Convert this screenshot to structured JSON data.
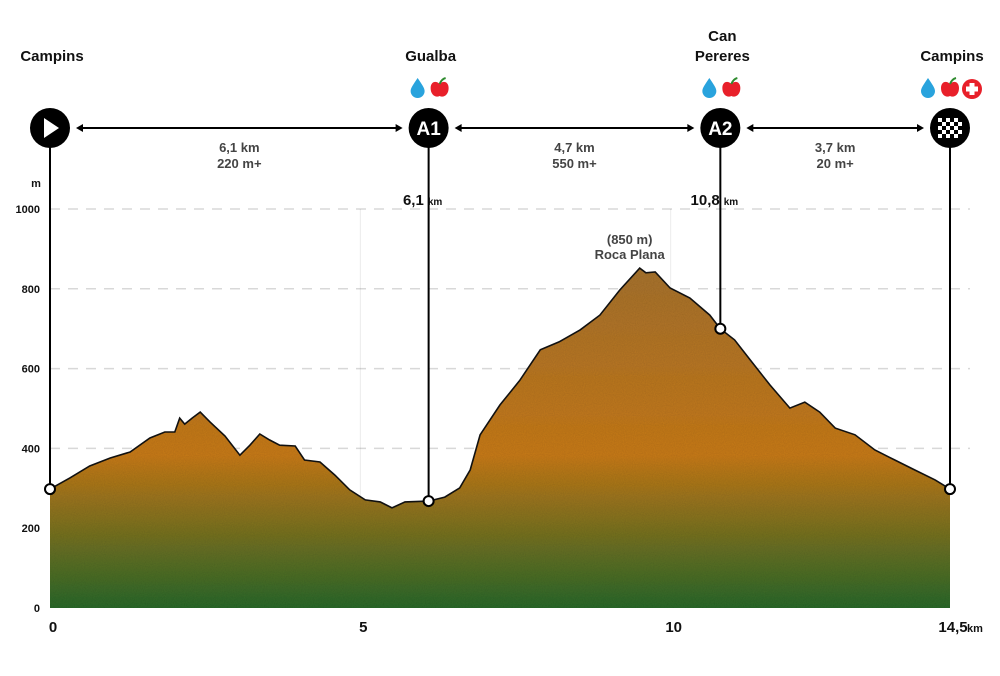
{
  "chart_data": {
    "type": "area",
    "xlabel": "km",
    "ylabel": "m",
    "xlim": [
      0,
      14.5
    ],
    "ylim": [
      0,
      1000
    ],
    "x_ticks": [
      "0",
      "5",
      "10",
      "14,5"
    ],
    "y_ticks": [
      "0",
      "200",
      "400",
      "600",
      "800",
      "1000"
    ],
    "grid": "dashed horizontal",
    "colors": {
      "top": "#a8742f",
      "middle": "#c97b1c",
      "bottom": "#2b6a2b",
      "line": "#111111"
    },
    "profile": [
      [
        0,
        298
      ],
      [
        0.32,
        326
      ],
      [
        0.64,
        356
      ],
      [
        0.97,
        376
      ],
      [
        1.29,
        391
      ],
      [
        1.61,
        426
      ],
      [
        1.85,
        441
      ],
      [
        2.01,
        441
      ],
      [
        2.09,
        476
      ],
      [
        2.17,
        461
      ],
      [
        2.29,
        476
      ],
      [
        2.42,
        491
      ],
      [
        2.58,
        466
      ],
      [
        2.82,
        431
      ],
      [
        3.06,
        383
      ],
      [
        3.22,
        408
      ],
      [
        3.38,
        436
      ],
      [
        3.54,
        421
      ],
      [
        3.7,
        408
      ],
      [
        3.95,
        406
      ],
      [
        4.1,
        371
      ],
      [
        4.35,
        366
      ],
      [
        4.59,
        333
      ],
      [
        4.83,
        296
      ],
      [
        5.08,
        271
      ],
      [
        5.32,
        266
      ],
      [
        5.51,
        251
      ],
      [
        5.72,
        266
      ],
      [
        6.1,
        268
      ],
      [
        6.36,
        278
      ],
      [
        6.6,
        301
      ],
      [
        6.77,
        346
      ],
      [
        6.93,
        434
      ],
      [
        7.25,
        509
      ],
      [
        7.57,
        571
      ],
      [
        7.9,
        647
      ],
      [
        8.2,
        667
      ],
      [
        8.54,
        697
      ],
      [
        8.86,
        734
      ],
      [
        9.18,
        797
      ],
      [
        9.5,
        852
      ],
      [
        9.6,
        840
      ],
      [
        9.75,
        842
      ],
      [
        9.99,
        802
      ],
      [
        10.31,
        777
      ],
      [
        10.63,
        734
      ],
      [
        10.8,
        700
      ],
      [
        11.03,
        672
      ],
      [
        11.28,
        622
      ],
      [
        11.6,
        559
      ],
      [
        11.92,
        501
      ],
      [
        12.16,
        516
      ],
      [
        12.4,
        491
      ],
      [
        12.65,
        451
      ],
      [
        12.97,
        434
      ],
      [
        13.29,
        396
      ],
      [
        13.61,
        371
      ],
      [
        13.93,
        346
      ],
      [
        14.26,
        321
      ],
      [
        14.5,
        298
      ]
    ],
    "peak": {
      "km": 9.5,
      "elevation": 850,
      "label_elev": "(850 m)",
      "label_name": "Roca Plana"
    },
    "checkpoints": [
      {
        "km": 0,
        "elevation": 298,
        "name": [
          "Campins"
        ],
        "badge": "start",
        "icon": "play-icon",
        "services": [],
        "km_label": ""
      },
      {
        "km": 6.1,
        "elevation": 268,
        "name": [
          "Gualba"
        ],
        "badge": "A1",
        "icon": "",
        "services": [
          "water-icon",
          "food-icon"
        ],
        "km_label": "6,1",
        "km_unit": "km"
      },
      {
        "km": 10.8,
        "elevation": 700,
        "name": [
          "Can",
          "Pereres"
        ],
        "badge": "A2",
        "icon": "",
        "services": [
          "water-icon",
          "food-icon"
        ],
        "km_label": "10,8",
        "km_unit": "km"
      },
      {
        "km": 14.5,
        "elevation": 298,
        "name": [
          "Campins"
        ],
        "badge": "finish",
        "icon": "checkered-flag-icon",
        "services": [
          "water-icon",
          "food-icon",
          "medical-icon"
        ],
        "km_label": ""
      }
    ],
    "segments": [
      {
        "distance": "6,1 km",
        "gain": "220 m+"
      },
      {
        "distance": "4,7 km",
        "gain": "550 m+"
      },
      {
        "distance": "3,7 km",
        "gain": "20 m+"
      }
    ]
  }
}
